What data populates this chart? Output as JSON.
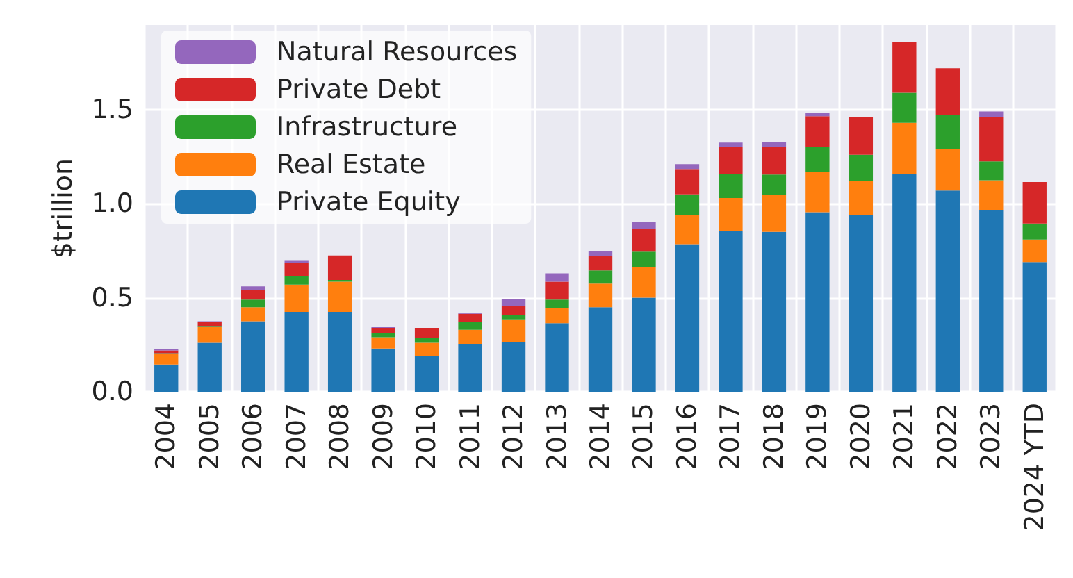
{
  "chart_data": {
    "type": "bar",
    "stacked": true,
    "ylabel": "$trillion",
    "categories": [
      "2004",
      "2005",
      "2006",
      "2007",
      "2008",
      "2009",
      "2010",
      "2011",
      "2012",
      "2013",
      "2014",
      "2015",
      "2016",
      "2017",
      "2018",
      "2019",
      "2020",
      "2021",
      "2022",
      "2023",
      "2024 YTD"
    ],
    "series": [
      {
        "name": "Private Equity",
        "color": "#1f77b4",
        "values": [
          0.145,
          0.26,
          0.375,
          0.425,
          0.425,
          0.23,
          0.19,
          0.255,
          0.265,
          0.365,
          0.45,
          0.5,
          0.785,
          0.855,
          0.85,
          0.955,
          0.94,
          1.16,
          1.07,
          0.965,
          0.69
        ]
      },
      {
        "name": "Real Estate",
        "color": "#ff7f0e",
        "values": [
          0.055,
          0.085,
          0.075,
          0.145,
          0.16,
          0.06,
          0.07,
          0.075,
          0.12,
          0.08,
          0.125,
          0.165,
          0.155,
          0.175,
          0.195,
          0.215,
          0.18,
          0.27,
          0.22,
          0.16,
          0.12
        ]
      },
      {
        "name": "Infrastructure",
        "color": "#2ca02c",
        "values": [
          0.005,
          0.005,
          0.04,
          0.045,
          0.01,
          0.02,
          0.025,
          0.04,
          0.025,
          0.045,
          0.07,
          0.08,
          0.11,
          0.13,
          0.11,
          0.13,
          0.14,
          0.16,
          0.18,
          0.1,
          0.085
        ]
      },
      {
        "name": "Private Debt",
        "color": "#d62728",
        "values": [
          0.015,
          0.02,
          0.05,
          0.07,
          0.13,
          0.03,
          0.055,
          0.045,
          0.045,
          0.095,
          0.075,
          0.12,
          0.135,
          0.14,
          0.145,
          0.165,
          0.2,
          0.27,
          0.25,
          0.235,
          0.22
        ]
      },
      {
        "name": "Natural Resources",
        "color": "#9467bd",
        "values": [
          0.005,
          0.005,
          0.02,
          0.015,
          0,
          0.005,
          0,
          0.005,
          0.04,
          0.045,
          0.03,
          0.04,
          0.025,
          0.025,
          0.03,
          0.02,
          0,
          0,
          0,
          0.03,
          0
        ]
      }
    ],
    "ylim": [
      0,
      1.95
    ],
    "yticks": [
      {
        "value": 0,
        "label": "0.0"
      },
      {
        "value": 0.5,
        "label": "0.5"
      },
      {
        "value": 1,
        "label": "1.0"
      },
      {
        "value": 1.5,
        "label": "1.5"
      }
    ],
    "grid": true,
    "legend": "top left"
  }
}
